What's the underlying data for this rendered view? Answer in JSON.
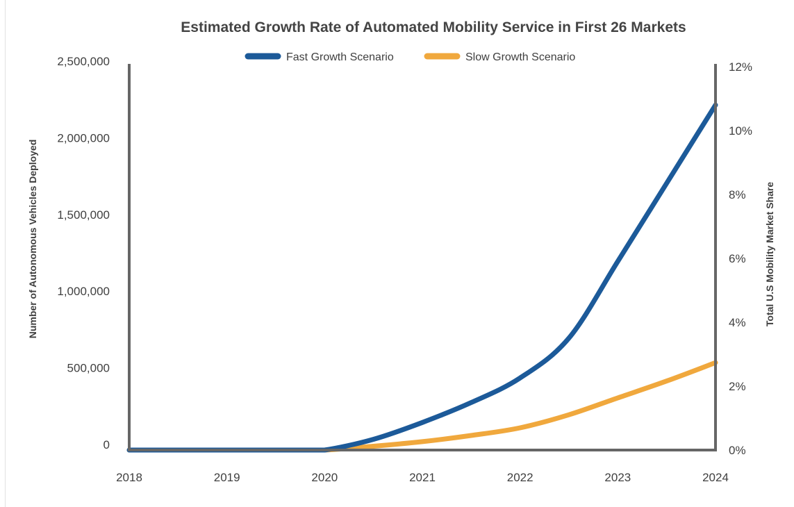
{
  "chart_data": {
    "type": "line",
    "title": "Estimated Growth Rate of Automated Mobility Service in First 26 Markets",
    "ylabel": "Number of Autonomous Vehicles Deployed",
    "y2label": "Total U.S Mobility Market Share",
    "x_ticks": [
      "2018",
      "2019",
      "2020",
      "2021",
      "2022",
      "2023",
      "2024"
    ],
    "xlim": [
      2018,
      2024
    ],
    "ylim": [
      0,
      2500000
    ],
    "y_ticks": [
      "0",
      "500,000",
      "1,000,000",
      "1,500,000",
      "2,000,000",
      "2,500,000"
    ],
    "y2lim": [
      0,
      12
    ],
    "y2_ticks": [
      "0%",
      "2%",
      "4%",
      "6%",
      "8%",
      "10%",
      "12%"
    ],
    "grid": false,
    "legend_position": "top-center",
    "series": [
      {
        "name": "Fast Growth Scenario",
        "color": "#1c5a99",
        "points": [
          [
            2018,
            0
          ],
          [
            2019,
            0
          ],
          [
            2019.75,
            0
          ],
          [
            2020,
            0
          ],
          [
            2020.5,
            70000
          ],
          [
            2021,
            180000
          ],
          [
            2021.5,
            310000
          ],
          [
            2022,
            470000
          ],
          [
            2022.5,
            730000
          ],
          [
            2023,
            1230000
          ],
          [
            2023.5,
            1740000
          ],
          [
            2024,
            2250000
          ]
        ]
      },
      {
        "name": "Slow Growth Scenario",
        "color": "#f0a83d",
        "points": [
          [
            2018,
            0
          ],
          [
            2019,
            0
          ],
          [
            2019.75,
            0
          ],
          [
            2020,
            0
          ],
          [
            2020.5,
            25000
          ],
          [
            2021,
            55000
          ],
          [
            2021.5,
            95000
          ],
          [
            2022,
            145000
          ],
          [
            2022.5,
            230000
          ],
          [
            2023,
            340000
          ],
          [
            2023.5,
            450000
          ],
          [
            2024,
            570000
          ]
        ]
      }
    ],
    "colors": {
      "axis": "#666666",
      "text": "#3f3f3f",
      "title": "#444444"
    }
  }
}
